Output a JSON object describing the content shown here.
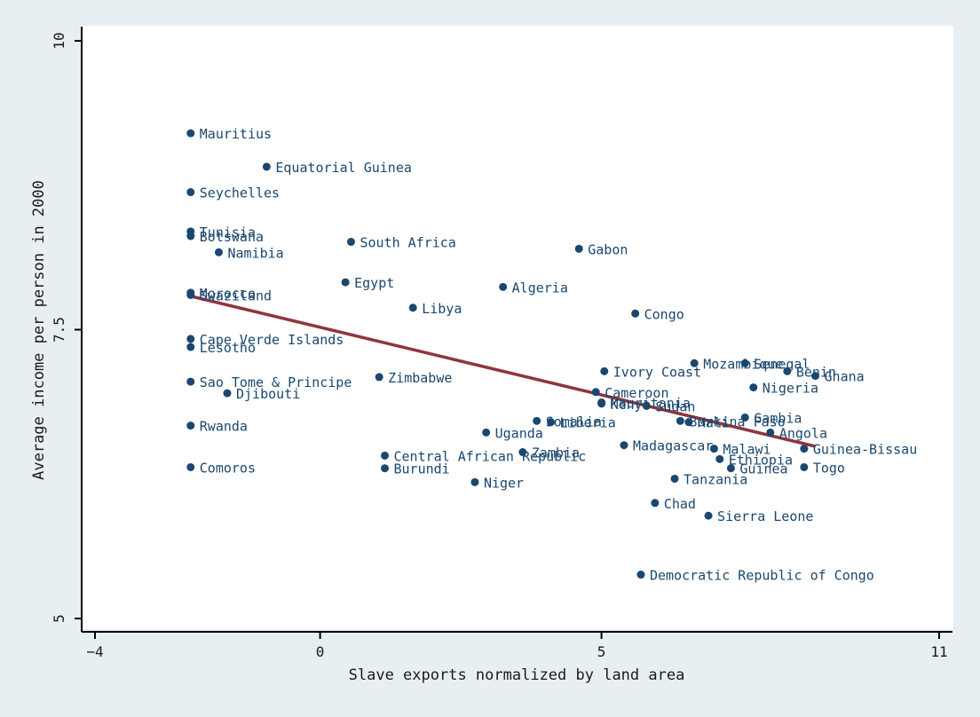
{
  "chart_data": {
    "type": "scatter",
    "xlabel": "Slave exports normalized by land area",
    "ylabel": "Average income per person in 2000",
    "xlim": [
      -4,
      11
    ],
    "ylim": [
      5,
      10
    ],
    "xticks": [
      {
        "value": -4,
        "label": "−4"
      },
      {
        "value": 0,
        "label": "0"
      },
      {
        "value": 5,
        "label": "5"
      },
      {
        "value": 11,
        "label": "11"
      }
    ],
    "yticks": [
      {
        "value": 5,
        "label": "5"
      },
      {
        "value": 7.5,
        "label": "7.5"
      },
      {
        "value": 10,
        "label": "10"
      }
    ],
    "grid": false,
    "legend": "none",
    "colors": {
      "background": "#e8eff2",
      "plot_area": "#ffffff",
      "points": "#1a476f",
      "fit_line": "#90353b",
      "axis": "#000000"
    },
    "fit_line": {
      "x": [
        -2.3,
        8.8
      ],
      "y": [
        7.79,
        6.49
      ]
    },
    "points": [
      {
        "label": "Mauritius",
        "x": -2.3,
        "y": 9.2
      },
      {
        "label": "Equatorial Guinea",
        "x": -0.95,
        "y": 8.91
      },
      {
        "label": "Seychelles",
        "x": -2.3,
        "y": 8.69
      },
      {
        "label": "Tunisia",
        "x": -2.3,
        "y": 8.35
      },
      {
        "label": "Botswana",
        "x": -2.3,
        "y": 8.31
      },
      {
        "label": "Namibia",
        "x": -1.8,
        "y": 8.17
      },
      {
        "label": "South Africa",
        "x": 0.55,
        "y": 8.26
      },
      {
        "label": "Gabon",
        "x": 4.6,
        "y": 8.2
      },
      {
        "label": "Egypt",
        "x": 0.45,
        "y": 7.91
      },
      {
        "label": "Algeria",
        "x": 3.25,
        "y": 7.87
      },
      {
        "label": "Morocco",
        "x": -2.3,
        "y": 7.82
      },
      {
        "label": "Swaziland",
        "x": -2.3,
        "y": 7.8
      },
      {
        "label": "Libya",
        "x": 1.65,
        "y": 7.69
      },
      {
        "label": "Congo",
        "x": 5.6,
        "y": 7.64
      },
      {
        "label": "Cape Verde Islands",
        "x": -2.3,
        "y": 7.42
      },
      {
        "label": "Lesotho",
        "x": -2.3,
        "y": 7.35
      },
      {
        "label": "Sao Tome & Principe",
        "x": -2.3,
        "y": 7.05
      },
      {
        "label": "Zimbabwe",
        "x": 1.05,
        "y": 7.09
      },
      {
        "label": "Djibouti",
        "x": -1.65,
        "y": 6.95
      },
      {
        "label": "Mozambique",
        "x": 6.65,
        "y": 7.21
      },
      {
        "label": "Senegal",
        "x": 7.55,
        "y": 7.21
      },
      {
        "label": "Benin",
        "x": 8.3,
        "y": 7.14
      },
      {
        "label": "Ghana",
        "x": 8.8,
        "y": 7.1
      },
      {
        "label": "Ivory Coast",
        "x": 5.05,
        "y": 7.14
      },
      {
        "label": "Nigeria",
        "x": 7.7,
        "y": 7.0
      },
      {
        "label": "Cameroon",
        "x": 4.9,
        "y": 6.96
      },
      {
        "label": "Mauritania",
        "x": 5.0,
        "y": 6.87
      },
      {
        "label": "Kenya",
        "x": 5.0,
        "y": 6.86
      },
      {
        "label": "Sudan",
        "x": 5.8,
        "y": 6.84
      },
      {
        "label": "Gambia",
        "x": 7.55,
        "y": 6.74
      },
      {
        "label": "Burkina Faso",
        "x": 6.4,
        "y": 6.71
      },
      {
        "label": "Mali",
        "x": 6.55,
        "y": 6.7
      },
      {
        "label": "Somalia",
        "x": 3.85,
        "y": 6.71
      },
      {
        "label": "Liberia",
        "x": 4.1,
        "y": 6.7
      },
      {
        "label": "Angola",
        "x": 8.0,
        "y": 6.61
      },
      {
        "label": "Uganda",
        "x": 2.95,
        "y": 6.61
      },
      {
        "label": "Rwanda",
        "x": -2.3,
        "y": 6.67
      },
      {
        "label": "Madagascar",
        "x": 5.4,
        "y": 6.5
      },
      {
        "label": "Malawi",
        "x": 7.0,
        "y": 6.47
      },
      {
        "label": "Guinea-Bissau",
        "x": 8.6,
        "y": 6.47
      },
      {
        "label": "Zambia",
        "x": 3.6,
        "y": 6.44
      },
      {
        "label": "Central African Republic",
        "x": 1.15,
        "y": 6.41
      },
      {
        "label": "Ethiopia",
        "x": 7.1,
        "y": 6.38
      },
      {
        "label": "Comoros",
        "x": -2.3,
        "y": 6.31
      },
      {
        "label": "Burundi",
        "x": 1.15,
        "y": 6.3
      },
      {
        "label": "Guinea",
        "x": 7.3,
        "y": 6.3
      },
      {
        "label": "Togo",
        "x": 8.6,
        "y": 6.31
      },
      {
        "label": "Tanzania",
        "x": 6.3,
        "y": 6.21
      },
      {
        "label": "Niger",
        "x": 2.75,
        "y": 6.18
      },
      {
        "label": "Chad",
        "x": 5.95,
        "y": 6.0
      },
      {
        "label": "Sierra Leone",
        "x": 6.9,
        "y": 5.89
      },
      {
        "label": "Democratic Republic of Congo",
        "x": 5.7,
        "y": 5.38
      }
    ]
  }
}
